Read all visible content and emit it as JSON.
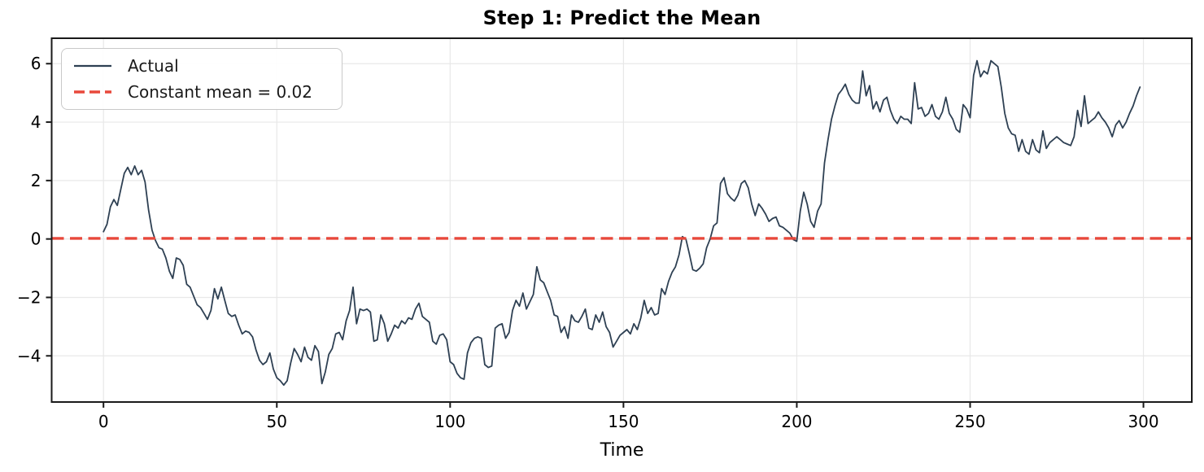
{
  "title": "Step 1: Predict the Mean",
  "colors": {
    "actual_line": "#2e4053",
    "mean_line": "#e8483b",
    "grid": "#e8e8e8",
    "spine": "#1a1a1a",
    "text": "#000000",
    "legend_border": "#c9c9c9",
    "background": "#ffffff"
  },
  "chart_data": {
    "type": "line",
    "title": "Step 1: Predict the Mean",
    "xlabel": "Time",
    "ylabel": "",
    "x_ticks": [
      0,
      50,
      100,
      150,
      200,
      250,
      300
    ],
    "y_ticks": [
      -4,
      -2,
      0,
      2,
      4,
      6
    ],
    "xlim": [
      -14.95,
      313.95
    ],
    "ylim": [
      -5.58,
      6.87
    ],
    "grid": true,
    "legend": {
      "position": "upper left",
      "entries": [
        {
          "label": "Actual",
          "color": "#2e4053",
          "style": "solid"
        },
        {
          "label": "Constant mean = 0.02",
          "color": "#e8483b",
          "style": "dashed"
        }
      ]
    },
    "series": [
      {
        "name": "Actual",
        "type": "line",
        "color": "#2e4053",
        "x_start": 0,
        "x_step": 1,
        "values": [
          0.25,
          0.5,
          1.1,
          1.35,
          1.15,
          1.7,
          2.25,
          2.45,
          2.2,
          2.5,
          2.2,
          2.35,
          1.95,
          1.0,
          0.3,
          -0.05,
          -0.3,
          -0.35,
          -0.65,
          -1.1,
          -1.35,
          -0.65,
          -0.7,
          -0.9,
          -1.55,
          -1.65,
          -1.95,
          -2.25,
          -2.35,
          -2.55,
          -2.75,
          -2.45,
          -1.7,
          -2.05,
          -1.65,
          -2.1,
          -2.55,
          -2.65,
          -2.6,
          -2.95,
          -3.25,
          -3.15,
          -3.2,
          -3.35,
          -3.8,
          -4.15,
          -4.3,
          -4.2,
          -3.9,
          -4.45,
          -4.75,
          -4.85,
          -5.0,
          -4.85,
          -4.25,
          -3.75,
          -3.95,
          -4.2,
          -3.7,
          -4.05,
          -4.15,
          -3.65,
          -3.85,
          -4.95,
          -4.55,
          -3.95,
          -3.75,
          -3.25,
          -3.2,
          -3.45,
          -2.8,
          -2.45,
          -1.65,
          -2.9,
          -2.4,
          -2.45,
          -2.4,
          -2.5,
          -3.5,
          -3.45,
          -2.6,
          -2.9,
          -3.5,
          -3.25,
          -2.95,
          -3.05,
          -2.8,
          -2.9,
          -2.7,
          -2.75,
          -2.4,
          -2.2,
          -2.65,
          -2.75,
          -2.85,
          -3.5,
          -3.6,
          -3.3,
          -3.25,
          -3.45,
          -4.2,
          -4.3,
          -4.6,
          -4.75,
          -4.8,
          -3.9,
          -3.55,
          -3.4,
          -3.35,
          -3.4,
          -4.3,
          -4.4,
          -4.35,
          -3.05,
          -2.95,
          -2.9,
          -3.4,
          -3.2,
          -2.45,
          -2.1,
          -2.3,
          -1.85,
          -2.4,
          -2.15,
          -1.9,
          -0.95,
          -1.4,
          -1.5,
          -1.8,
          -2.1,
          -2.6,
          -2.65,
          -3.2,
          -3.0,
          -3.4,
          -2.6,
          -2.8,
          -2.85,
          -2.65,
          -2.4,
          -3.05,
          -3.1,
          -2.6,
          -2.85,
          -2.5,
          -3.0,
          -3.2,
          -3.7,
          -3.5,
          -3.3,
          -3.2,
          -3.1,
          -3.25,
          -2.9,
          -3.1,
          -2.7,
          -2.1,
          -2.55,
          -2.35,
          -2.6,
          -2.55,
          -1.7,
          -1.9,
          -1.45,
          -1.15,
          -0.95,
          -0.55,
          0.08,
          0.0,
          -0.5,
          -1.05,
          -1.1,
          -1.0,
          -0.85,
          -0.3,
          0.0,
          0.45,
          0.55,
          1.9,
          2.1,
          1.55,
          1.4,
          1.3,
          1.5,
          1.9,
          2.0,
          1.75,
          1.2,
          0.8,
          1.2,
          1.05,
          0.85,
          0.6,
          0.7,
          0.75,
          0.45,
          0.4,
          0.3,
          0.2,
          -0.02,
          -0.08,
          0.95,
          1.6,
          1.2,
          0.6,
          0.4,
          0.95,
          1.2,
          2.6,
          3.4,
          4.1,
          4.55,
          4.95,
          5.1,
          5.3,
          4.95,
          4.75,
          4.65,
          4.65,
          5.75,
          4.9,
          5.25,
          4.45,
          4.7,
          4.35,
          4.75,
          4.85,
          4.4,
          4.1,
          3.95,
          4.2,
          4.1,
          4.1,
          3.95,
          5.35,
          4.45,
          4.5,
          4.2,
          4.3,
          4.6,
          4.2,
          4.1,
          4.35,
          4.85,
          4.3,
          4.1,
          3.75,
          3.65,
          4.6,
          4.45,
          4.15,
          5.6,
          6.1,
          5.55,
          5.75,
          5.65,
          6.1,
          6.0,
          5.9,
          5.2,
          4.3,
          3.8,
          3.6,
          3.55,
          3.0,
          3.4,
          3.0,
          2.9,
          3.4,
          3.05,
          2.95,
          3.7,
          3.1,
          3.3,
          3.4,
          3.5,
          3.4,
          3.3,
          3.25,
          3.2,
          3.5,
          4.4,
          3.85,
          4.9,
          3.95,
          4.05,
          4.15,
          4.35,
          4.15,
          4.0,
          3.8,
          3.5,
          3.9,
          4.05,
          3.8,
          4.0,
          4.3,
          4.55,
          4.9,
          5.2
        ]
      },
      {
        "name": "Constant mean = 0.02",
        "type": "hline",
        "color": "#e8483b",
        "dashed": true,
        "value": 0.02
      }
    ]
  }
}
